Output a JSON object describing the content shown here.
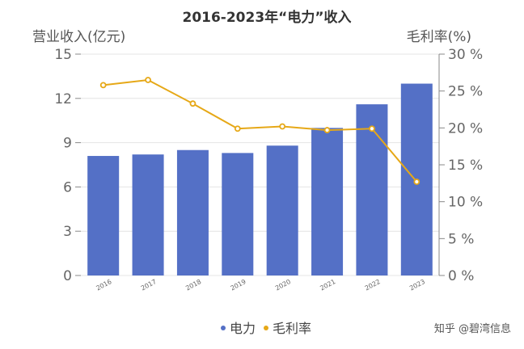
{
  "chart_data": {
    "type": "bar",
    "title": "2016-2023年“电力”收入",
    "ylabel_left": "营业收入(亿元)",
    "ylabel_right": "毛利率(%)",
    "categories": [
      "2016",
      "2017",
      "2018",
      "2019",
      "2020",
      "2021",
      "2022",
      "2023"
    ],
    "series": [
      {
        "name": "电力",
        "type": "bar",
        "axis": "left",
        "color": "#5470c6",
        "values": [
          8.1,
          8.2,
          8.5,
          8.3,
          8.8,
          10.0,
          11.6,
          13.0
        ]
      },
      {
        "name": "毛利率",
        "type": "line",
        "axis": "right",
        "color": "#e6a817",
        "values": [
          25.8,
          26.5,
          23.3,
          19.9,
          20.2,
          19.7,
          19.9,
          12.7
        ]
      }
    ],
    "ylim_left": [
      0,
      15
    ],
    "yticks_left": [
      "0",
      "3",
      "6",
      "9",
      "12",
      "15"
    ],
    "ylim_right": [
      0,
      30
    ],
    "yticks_right": [
      "0 %",
      "5 %",
      "10 %",
      "15 %",
      "20 %",
      "25 %",
      "30 %"
    ],
    "grid": true,
    "legend_position": "bottom-center"
  },
  "watermark": "知乎 @碧湾信息"
}
